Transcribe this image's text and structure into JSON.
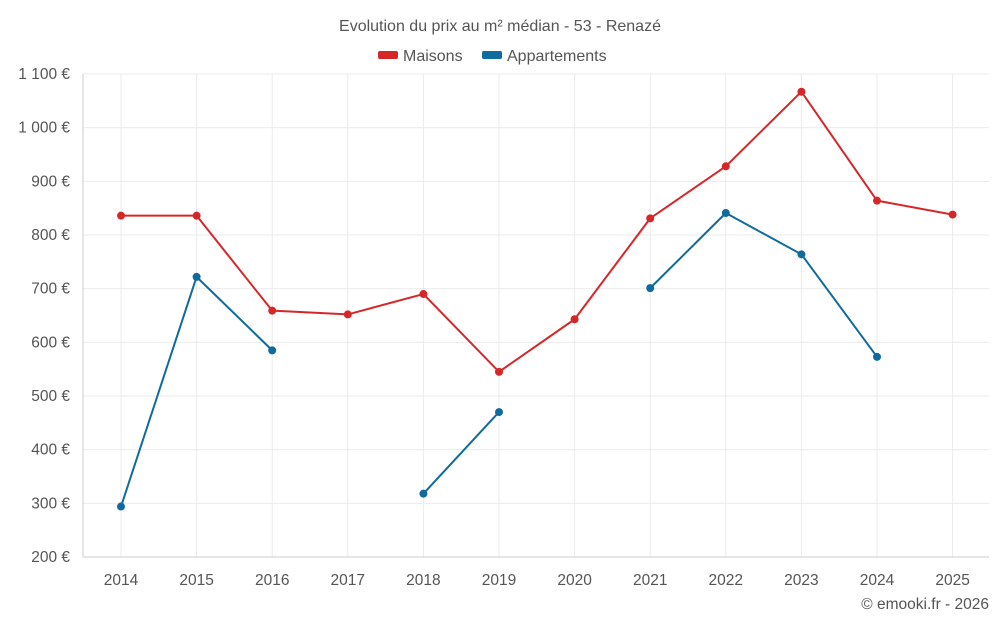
{
  "chart_data": {
    "type": "line",
    "title": "Evolution du prix au m² médian - 53 - Renazé",
    "categories": [
      "2014",
      "2015",
      "2016",
      "2017",
      "2018",
      "2019",
      "2020",
      "2021",
      "2022",
      "2023",
      "2024",
      "2025"
    ],
    "series": [
      {
        "name": "Maisons",
        "color": "#d62728",
        "values": [
          836,
          836,
          659,
          652,
          690,
          545,
          643,
          831,
          928,
          1067,
          864,
          838
        ]
      },
      {
        "name": "Appartements",
        "color": "#0f6a9e",
        "values": [
          294,
          722,
          585,
          null,
          318,
          470,
          null,
          701,
          841,
          764,
          573,
          null
        ]
      }
    ],
    "ylim": [
      200,
      1100
    ],
    "yticks": [
      200,
      300,
      400,
      500,
      600,
      700,
      800,
      900,
      1000,
      1100
    ],
    "ytick_labels": [
      "200 €",
      "300 €",
      "400 €",
      "500 €",
      "600 €",
      "700 €",
      "800 €",
      "900 €",
      "1 000 €",
      "1 100 €"
    ],
    "xlabel": "",
    "ylabel": "",
    "grid": true,
    "legend_position": "top-center",
    "credit": "© emooki.fr - 2026"
  }
}
